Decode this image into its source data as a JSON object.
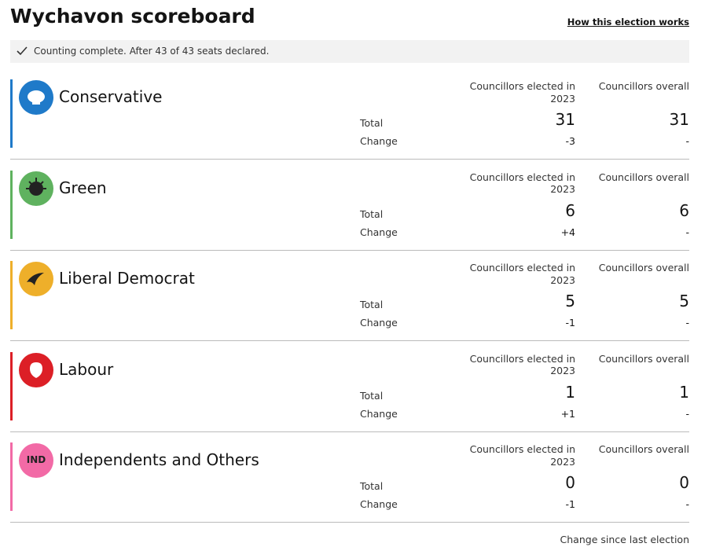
{
  "header": {
    "title": "Wychavon scoreboard",
    "link": "How this election works"
  },
  "status": "Counting complete. After 43 of 43 seats declared.",
  "columns": [
    "Councillors elected in 2023",
    "Councillors overall"
  ],
  "row_labels": [
    "Total",
    "Change"
  ],
  "parties": [
    {
      "name": "Conservative",
      "color": "#1f7ac9",
      "elected_total": 31,
      "elected_change": "-3",
      "overall_total": 31,
      "overall_change": "-"
    },
    {
      "name": "Green",
      "color": "#5fb25f",
      "elected_total": 6,
      "elected_change": "+4",
      "overall_total": 6,
      "overall_change": "-"
    },
    {
      "name": "Liberal Democrat",
      "color": "#eeaf2a",
      "elected_total": 5,
      "elected_change": "-1",
      "overall_total": 5,
      "overall_change": "-"
    },
    {
      "name": "Labour",
      "color": "#dc1f26",
      "elected_total": 1,
      "elected_change": "+1",
      "overall_total": 1,
      "overall_change": "-"
    },
    {
      "name": "Independents and Others",
      "logo": "IND",
      "color": "#f26aa6",
      "elected_total": 0,
      "elected_change": "-1",
      "overall_total": 0,
      "overall_change": "-"
    }
  ],
  "footer": "Change since last election"
}
